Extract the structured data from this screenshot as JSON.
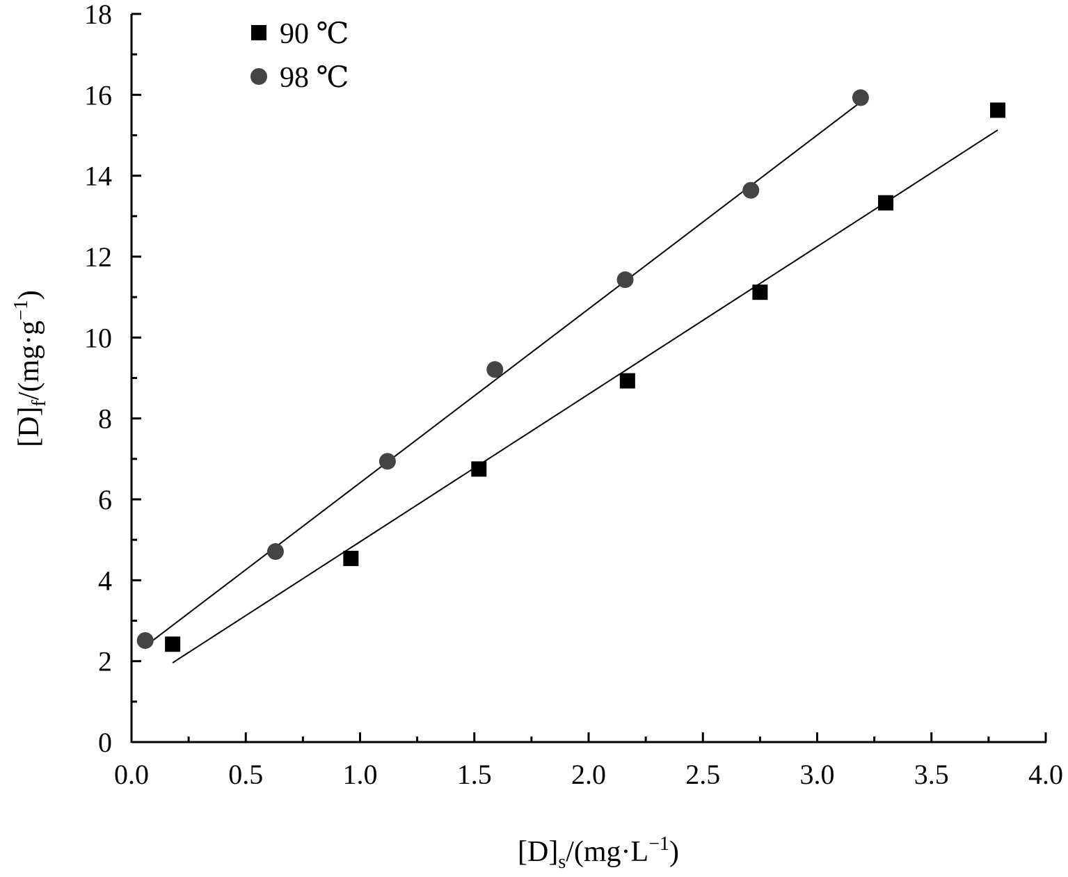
{
  "chart_data": {
    "type": "scatter",
    "title": "",
    "xlabel": {
      "main": "[D]",
      "sub": "s",
      "rest": "/(mg·L",
      "sup": "−1",
      "close": ")"
    },
    "ylabel": {
      "main": "[D]",
      "sub": "f",
      "rest": "/(mg·g",
      "sup": "−1",
      "close": ")"
    },
    "xlim": [
      0,
      4.0
    ],
    "ylim": [
      0,
      18
    ],
    "xticks": [
      "0.0",
      "0.5",
      "1.0",
      "1.5",
      "2.0",
      "2.5",
      "3.0",
      "3.5",
      "4.0"
    ],
    "yticks": [
      "0",
      "2",
      "4",
      "6",
      "8",
      "10",
      "12",
      "14",
      "16",
      "18"
    ],
    "grid": false,
    "legend_position": "top-left",
    "series": [
      {
        "name": "90 ℃",
        "marker": "square",
        "color": "#000000",
        "x": [
          0.18,
          0.96,
          1.52,
          2.17,
          2.75,
          3.3,
          3.79
        ],
        "y": [
          2.42,
          4.54,
          6.75,
          8.93,
          11.12,
          13.33,
          15.62
        ],
        "fit": {
          "x": [
            0.18,
            3.79
          ],
          "y": [
            1.96,
            15.13
          ]
        }
      },
      {
        "name": "98 ℃",
        "marker": "circle",
        "color": "#444444",
        "x": [
          0.06,
          0.63,
          1.12,
          1.59,
          2.16,
          2.71,
          3.19
        ],
        "y": [
          2.51,
          4.71,
          6.94,
          9.21,
          11.43,
          13.64,
          15.93
        ],
        "fit": {
          "x": [
            0.06,
            3.19
          ],
          "y": [
            2.37,
            15.82
          ]
        }
      }
    ]
  }
}
